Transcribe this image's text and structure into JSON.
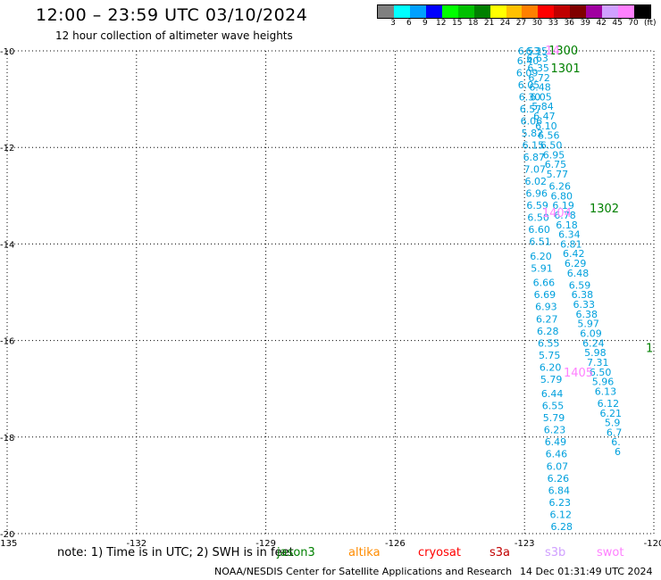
{
  "header": {
    "title": "12:00 – 23:59 UTC 03/10/2024",
    "subtitle": "12 hour collection of altimeter wave heights"
  },
  "legend": {
    "unit": "(ft)",
    "bins": [
      {
        "label": "3",
        "color": "#808080"
      },
      {
        "label": "6",
        "color": "#00ffff"
      },
      {
        "label": "9",
        "color": "#00a0ff"
      },
      {
        "label": "12",
        "color": "#0000ff"
      },
      {
        "label": "15",
        "color": "#00ff00"
      },
      {
        "label": "18",
        "color": "#00c000"
      },
      {
        "label": "21",
        "color": "#008000"
      },
      {
        "label": "24",
        "color": "#ffff00"
      },
      {
        "label": "27",
        "color": "#ffc000"
      },
      {
        "label": "30",
        "color": "#ff8000"
      },
      {
        "label": "33",
        "color": "#ff0000"
      },
      {
        "label": "36",
        "color": "#c00000"
      },
      {
        "label": "39",
        "color": "#800000"
      },
      {
        "label": "42",
        "color": "#a000a0"
      },
      {
        "label": "45",
        "color": "#d0a0ff"
      },
      {
        "label": "70",
        "color": "#ff80ff"
      },
      {
        "label": "",
        "color": "#000000"
      }
    ]
  },
  "map": {
    "lon_range": [
      -135,
      -120
    ],
    "lat_range": [
      -20,
      -10
    ],
    "lon_ticks": [
      -135,
      -132,
      -129,
      -126,
      -123,
      -120
    ],
    "lat_ticks": [
      -10,
      -12,
      -14,
      -16,
      -18,
      -20
    ],
    "lon_tick_labels": [
      "-135",
      "-132",
      "-129",
      "-126",
      "-123",
      "-120"
    ],
    "lat_tick_labels": [
      "-10",
      "-12",
      "-14",
      "-16",
      "-18",
      "-20"
    ],
    "track_color": "#00a0dd",
    "tracks": [
      {
        "points": [
          {
            "lon": -122.9,
            "lat": -10.0,
            "v": "6.53"
          },
          {
            "lon": -122.92,
            "lat": -10.2,
            "v": "6.40"
          },
          {
            "lon": -122.94,
            "lat": -10.45,
            "v": "6.09"
          },
          {
            "lon": -122.9,
            "lat": -10.7,
            "v": "6.05"
          },
          {
            "lon": -122.88,
            "lat": -10.95,
            "v": "6.30"
          },
          {
            "lon": -122.86,
            "lat": -11.2,
            "v": "6.57"
          },
          {
            "lon": -122.84,
            "lat": -11.45,
            "v": "6.06"
          },
          {
            "lon": -122.82,
            "lat": -11.7,
            "v": "5.82"
          },
          {
            "lon": -122.8,
            "lat": -11.95,
            "v": "6.15"
          },
          {
            "lon": -122.78,
            "lat": -12.2,
            "v": "6.87"
          },
          {
            "lon": -122.76,
            "lat": -12.45,
            "v": "7.07"
          },
          {
            "lon": -122.74,
            "lat": -12.7,
            "v": "6.02"
          },
          {
            "lon": -122.72,
            "lat": -12.95,
            "v": "6.96"
          },
          {
            "lon": -122.7,
            "lat": -13.2,
            "v": "6.59"
          },
          {
            "lon": -122.68,
            "lat": -13.45,
            "v": "6.50"
          },
          {
            "lon": -122.66,
            "lat": -13.7,
            "v": "6.60"
          },
          {
            "lon": -122.64,
            "lat": -13.95,
            "v": "6.51"
          },
          {
            "lon": -122.62,
            "lat": -14.25,
            "v": "6.20"
          },
          {
            "lon": -122.6,
            "lat": -14.5,
            "v": "5.91"
          },
          {
            "lon": -122.55,
            "lat": -14.8,
            "v": "6.66"
          },
          {
            "lon": -122.53,
            "lat": -15.05,
            "v": "6.69"
          },
          {
            "lon": -122.5,
            "lat": -15.3,
            "v": "6.93"
          },
          {
            "lon": -122.48,
            "lat": -15.55,
            "v": "6.27"
          },
          {
            "lon": -122.46,
            "lat": -15.8,
            "v": "6.28"
          },
          {
            "lon": -122.44,
            "lat": -16.05,
            "v": "6.55"
          },
          {
            "lon": -122.42,
            "lat": -16.3,
            "v": "5.75"
          },
          {
            "lon": -122.4,
            "lat": -16.55,
            "v": "6.20"
          },
          {
            "lon": -122.38,
            "lat": -16.8,
            "v": "5.79"
          },
          {
            "lon": -122.36,
            "lat": -17.1,
            "v": "6.44"
          },
          {
            "lon": -122.34,
            "lat": -17.35,
            "v": "6.55"
          },
          {
            "lon": -122.32,
            "lat": -17.6,
            "v": "5.79"
          },
          {
            "lon": -122.3,
            "lat": -17.85,
            "v": "6.23"
          },
          {
            "lon": -122.28,
            "lat": -18.1,
            "v": "6.49"
          },
          {
            "lon": -122.26,
            "lat": -18.35,
            "v": "6.46"
          },
          {
            "lon": -122.24,
            "lat": -18.6,
            "v": "6.07"
          },
          {
            "lon": -122.22,
            "lat": -18.85,
            "v": "6.26"
          },
          {
            "lon": -122.2,
            "lat": -19.1,
            "v": "6.84"
          },
          {
            "lon": -122.18,
            "lat": -19.35,
            "v": "6.23"
          },
          {
            "lon": -122.16,
            "lat": -19.6,
            "v": "6.12"
          },
          {
            "lon": -122.14,
            "lat": -19.85,
            "v": "6.28"
          }
        ]
      },
      {
        "points": [
          {
            "lon": -122.72,
            "lat": -10.0,
            "v": "6.35"
          },
          {
            "lon": -122.7,
            "lat": -10.15,
            "v": "6.63"
          },
          {
            "lon": -122.68,
            "lat": -10.35,
            "v": "6.35"
          },
          {
            "lon": -122.66,
            "lat": -10.55,
            "v": "6.72"
          },
          {
            "lon": -122.64,
            "lat": -10.75,
            "v": "6.48"
          },
          {
            "lon": -122.62,
            "lat": -10.95,
            "v": "6.05"
          },
          {
            "lon": -122.58,
            "lat": -11.15,
            "v": "5.84"
          },
          {
            "lon": -122.54,
            "lat": -11.35,
            "v": "6.47"
          },
          {
            "lon": -122.5,
            "lat": -11.55,
            "v": "6.10"
          },
          {
            "lon": -122.44,
            "lat": -11.75,
            "v": "6.56"
          },
          {
            "lon": -122.38,
            "lat": -11.95,
            "v": "6.50"
          },
          {
            "lon": -122.32,
            "lat": -12.15,
            "v": "6.95"
          },
          {
            "lon": -122.28,
            "lat": -12.35,
            "v": "6.75"
          },
          {
            "lon": -122.24,
            "lat": -12.55,
            "v": "5.77"
          },
          {
            "lon": -122.18,
            "lat": -12.8,
            "v": "6.26"
          },
          {
            "lon": -122.14,
            "lat": -13.0,
            "v": "6.80"
          },
          {
            "lon": -122.1,
            "lat": -13.2,
            "v": "6.19"
          },
          {
            "lon": -122.06,
            "lat": -13.4,
            "v": "6.78"
          },
          {
            "lon": -122.02,
            "lat": -13.6,
            "v": "6.18"
          },
          {
            "lon": -121.96,
            "lat": -13.8,
            "v": "6.34"
          },
          {
            "lon": -121.92,
            "lat": -14.0,
            "v": "6.81"
          },
          {
            "lon": -121.86,
            "lat": -14.2,
            "v": "6.42"
          },
          {
            "lon": -121.82,
            "lat": -14.4,
            "v": "6.29"
          },
          {
            "lon": -121.76,
            "lat": -14.6,
            "v": "6.48"
          },
          {
            "lon": -121.72,
            "lat": -14.85,
            "v": "6.59"
          },
          {
            "lon": -121.66,
            "lat": -15.05,
            "v": "6.38"
          },
          {
            "lon": -121.62,
            "lat": -15.25,
            "v": "6.33"
          },
          {
            "lon": -121.56,
            "lat": -15.45,
            "v": "6.38"
          },
          {
            "lon": -121.52,
            "lat": -15.65,
            "v": "5.97"
          },
          {
            "lon": -121.46,
            "lat": -15.85,
            "v": "6.09"
          },
          {
            "lon": -121.4,
            "lat": -16.05,
            "v": "6.24"
          },
          {
            "lon": -121.36,
            "lat": -16.25,
            "v": "5.98"
          },
          {
            "lon": -121.3,
            "lat": -16.45,
            "v": "7.31"
          },
          {
            "lon": -121.24,
            "lat": -16.65,
            "v": "6.50"
          },
          {
            "lon": -121.18,
            "lat": -16.85,
            "v": "5.96"
          },
          {
            "lon": -121.12,
            "lat": -17.05,
            "v": "6.13"
          },
          {
            "lon": -121.06,
            "lat": -17.3,
            "v": "6.12"
          },
          {
            "lon": -121.0,
            "lat": -17.5,
            "v": "6.21"
          },
          {
            "lon": -120.96,
            "lat": -17.7,
            "v": "5.9"
          },
          {
            "lon": -120.92,
            "lat": -17.9,
            "v": "6.7"
          },
          {
            "lon": -120.88,
            "lat": -18.1,
            "v": "6."
          },
          {
            "lon": -120.84,
            "lat": -18.3,
            "v": "6"
          }
        ]
      }
    ],
    "time_labels": [
      {
        "lon": -122.1,
        "lat": -9.98,
        "text": "1300",
        "color": "#008000"
      },
      {
        "lon": -122.35,
        "lat": -9.98,
        "text": "14",
        "color": "#ff80ff"
      },
      {
        "lon": -122.05,
        "lat": -10.35,
        "text": "1301",
        "color": "#008000"
      },
      {
        "lon": -121.15,
        "lat": -13.25,
        "text": "1302",
        "color": "#008000"
      },
      {
        "lon": -122.25,
        "lat": -13.35,
        "text": "1404",
        "color": "#ff80ff"
      },
      {
        "lon": -120.1,
        "lat": -16.15,
        "text": "1",
        "color": "#008000"
      },
      {
        "lon": -121.75,
        "lat": -16.65,
        "text": "1405",
        "color": "#ff80ff"
      }
    ]
  },
  "footer": {
    "note": "note:  1) Time is in UTC; 2) SWH is in feet",
    "satellites": [
      {
        "name": "jason3",
        "color": "#008000"
      },
      {
        "name": "altika",
        "color": "#ff8c00"
      },
      {
        "name": "cryosat",
        "color": "#ff0000"
      },
      {
        "name": "s3a",
        "color": "#c00000"
      },
      {
        "name": "s3b",
        "color": "#d0a0ff"
      },
      {
        "name": "swot",
        "color": "#ff80ff"
      }
    ],
    "credit": "NOAA/NESDIS Center for Satellite Applications and Research",
    "timestamp": "14 Dec 01:31:49 UTC 2024"
  }
}
